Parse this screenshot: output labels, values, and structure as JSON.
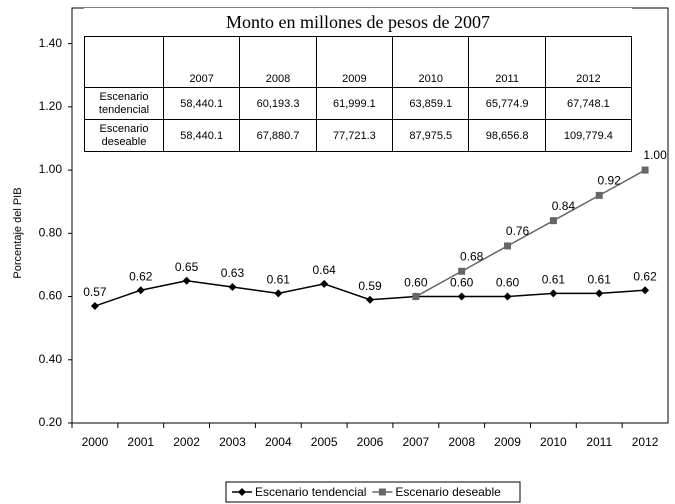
{
  "chart_data": {
    "type": "line",
    "ylabel": "Porcentaje del PIB",
    "categories": [
      "2000",
      "2001",
      "2002",
      "2003",
      "2004",
      "2005",
      "2006",
      "2007",
      "2008",
      "2009",
      "2010",
      "2011",
      "2012"
    ],
    "series": [
      {
        "name": "Escenario tendencial",
        "color": "#000000",
        "marker": "diamond",
        "values": [
          0.57,
          0.62,
          0.65,
          0.63,
          0.61,
          0.64,
          0.59,
          0.6,
          0.6,
          0.6,
          0.61,
          0.61,
          0.62
        ],
        "value_labels": [
          "0.57",
          "0.62",
          "0.65",
          "0.63",
          "0.61",
          "0.64",
          "0.59",
          "0.60",
          "0.60",
          "0.60",
          "0.61",
          "0.61",
          "0.62"
        ]
      },
      {
        "name": "Escenario deseable",
        "color": "#666666",
        "marker": "square",
        "values": [
          null,
          null,
          null,
          null,
          null,
          null,
          null,
          0.6,
          0.68,
          0.76,
          0.84,
          0.92,
          1.0
        ],
        "value_labels": [
          null,
          null,
          null,
          null,
          null,
          null,
          null,
          null,
          "0.68",
          "0.76",
          "0.84",
          "0.92",
          "1.00"
        ]
      }
    ],
    "ylim": [
      0.2,
      1.5
    ],
    "yticks": [
      {
        "value": 0.2,
        "label": "0.20"
      },
      {
        "value": 0.4,
        "label": "0.40"
      },
      {
        "value": 0.6,
        "label": "0.60"
      },
      {
        "value": 0.8,
        "label": "0.80"
      },
      {
        "value": 1.0,
        "label": "1.00"
      },
      {
        "value": 1.2,
        "label": "1.20"
      },
      {
        "value": 1.4,
        "label": "1.40"
      }
    ],
    "legend": "bottom"
  },
  "table": {
    "title": "Monto en millones de pesos de 2007",
    "columns": [
      "2007",
      "2008",
      "2009",
      "2010",
      "2011",
      "2012"
    ],
    "rows": [
      {
        "label": "Escenario tendencial",
        "values": [
          "58,440.1",
          "60,193.3",
          "61,999.1",
          "63,859.1",
          "65,774.9",
          "67,748.1"
        ]
      },
      {
        "label": "Escenario deseable",
        "values": [
          "58,440.1",
          "67,880.7",
          "77,721.3",
          "87,975.5",
          "98,656.8",
          "109,779.4"
        ]
      }
    ]
  }
}
